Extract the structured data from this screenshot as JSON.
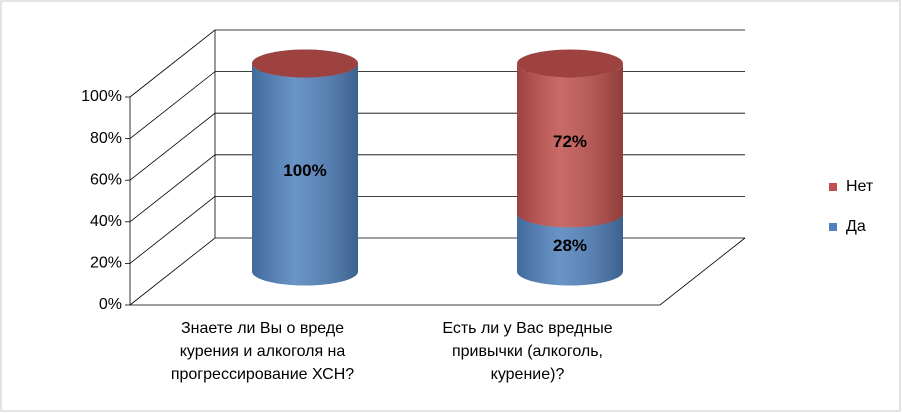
{
  "chart_data": {
    "type": "cylinder3d_stacked",
    "categories": [
      "Знаете ли Вы о вреде\nкурения и алкоголя на\nпрогрессирование ХСН?",
      "Есть ли у Вас вредные\nпривычки (алкоголь,\nкурение)?"
    ],
    "series": [
      {
        "name": "Да",
        "color": "#4f81bd",
        "values": [
          100,
          28
        ],
        "value_labels": [
          "100%",
          "28%"
        ]
      },
      {
        "name": "Нет",
        "color": "#c0504d",
        "values": [
          0,
          72
        ],
        "value_labels": [
          null,
          "72%"
        ]
      }
    ],
    "ylim": [
      0,
      100
    ],
    "yticks": [
      {
        "value": 0,
        "label": "0%"
      },
      {
        "value": 20,
        "label": "20%"
      },
      {
        "value": 40,
        "label": "40%"
      },
      {
        "value": 60,
        "label": "60%"
      },
      {
        "value": 80,
        "label": "80%"
      },
      {
        "value": 100,
        "label": "100%"
      }
    ],
    "grid": true,
    "legend": "right"
  }
}
